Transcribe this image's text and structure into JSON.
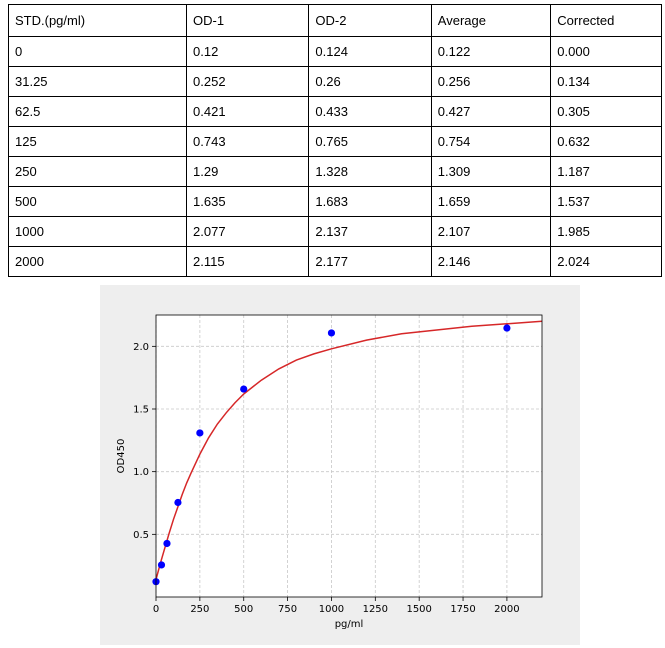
{
  "table": {
    "headers": [
      "STD.(pg/ml)",
      "OD-1",
      "OD-2",
      "Average",
      "Corrected"
    ],
    "rows": [
      [
        "0",
        "0.12",
        "0.124",
        "0.122",
        "0.000"
      ],
      [
        "31.25",
        "0.252",
        "0.26",
        "0.256",
        "0.134"
      ],
      [
        "62.5",
        "0.421",
        "0.433",
        "0.427",
        "0.305"
      ],
      [
        "125",
        "0.743",
        "0.765",
        "0.754",
        "0.632"
      ],
      [
        "250",
        "1.29",
        "1.328",
        "1.309",
        "1.187"
      ],
      [
        "500",
        "1.635",
        "1.683",
        "1.659",
        "1.537"
      ],
      [
        "1000",
        "2.077",
        "2.137",
        "2.107",
        "1.985"
      ],
      [
        "2000",
        "2.115",
        "2.177",
        "2.146",
        "2.024"
      ]
    ]
  },
  "chart_data": {
    "type": "scatter",
    "xlabel": "pg/ml",
    "ylabel": "OD450",
    "xlim": [
      0,
      2200
    ],
    "ylim": [
      0,
      2.25
    ],
    "xticks": [
      0,
      250,
      500,
      750,
      1000,
      1250,
      1500,
      1750,
      2000
    ],
    "xtick_labels": [
      "0",
      "250",
      "500",
      "750",
      "1000",
      "1250",
      "1500",
      "1750",
      "2000"
    ],
    "yticks": [
      0.5,
      1.0,
      1.5,
      2.0
    ],
    "ytick_labels": [
      "0.5",
      "1.0",
      "1.5",
      "2.0"
    ],
    "grid": true,
    "series": [
      {
        "type": "scatter",
        "color": "#0000ff",
        "x": [
          0,
          31.25,
          62.5,
          125,
          250,
          500,
          1000,
          2000
        ],
        "y": [
          0.122,
          0.256,
          0.427,
          0.754,
          1.309,
          1.659,
          2.107,
          2.146
        ]
      },
      {
        "type": "line",
        "color": "#d62728",
        "x": [
          0,
          25,
          50,
          75,
          100,
          125,
          150,
          175,
          200,
          250,
          300,
          350,
          400,
          450,
          500,
          600,
          700,
          800,
          900,
          1000,
          1200,
          1400,
          1600,
          1800,
          2000,
          2200
        ],
        "y": [
          0.14,
          0.27,
          0.39,
          0.51,
          0.62,
          0.72,
          0.82,
          0.91,
          0.99,
          1.14,
          1.27,
          1.38,
          1.47,
          1.55,
          1.62,
          1.73,
          1.82,
          1.89,
          1.94,
          1.98,
          2.05,
          2.1,
          2.13,
          2.16,
          2.18,
          2.2
        ]
      }
    ]
  }
}
